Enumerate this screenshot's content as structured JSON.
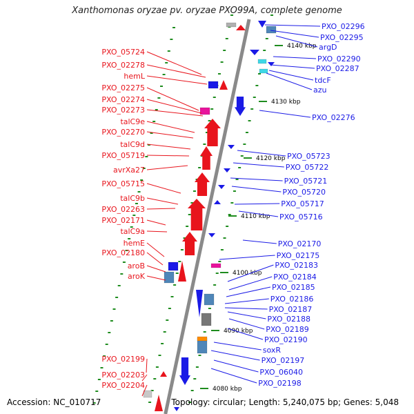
{
  "title": "Xanthomonas oryzae pv. oryzae PXO99A, complete genome",
  "footer": {
    "accession": "Accession: NC_010717",
    "summary": "Topology: circular; Length: 5,240,075 bp; Genes: 5,048"
  },
  "colors": {
    "reverse_strand": "#e8141c",
    "forward_strand": "#1a1ae6",
    "steel_gene": "#4f86b8",
    "cyan_gene": "#3fd7e6",
    "magenta_gene": "#e8149c",
    "ticks": "#1e8c1e",
    "backbone": "#8a8a8a"
  },
  "scale": {
    "unit": "kbp",
    "ticks": [
      "4140 kbp",
      "4130 kbp",
      "4120 kbp",
      "4110 kbp",
      "4100 kbp",
      "4090 kbp",
      "4080 kbp"
    ]
  },
  "left_labels": [
    "PXO_05724",
    "PXO_02278",
    "hemL",
    "PXO_02275",
    "PXO_02274",
    "PXO_02273",
    "talC9e",
    "PXO_02270",
    "talC9d",
    "PXO_05719",
    "avrXa27",
    "PXO_05715",
    "talC9b",
    "PXO_02263",
    "PXO_02171",
    "talC9a",
    "hemE",
    "PXO_02180",
    "aroB",
    "aroK",
    "PXO_02199",
    "PXO_02203",
    "PXO_02204"
  ],
  "right_labels": [
    "PXO_02296",
    "PXO_02295",
    "argD",
    "PXO_02290",
    "PXO_02287",
    "tdcF",
    "azu",
    "PXO_02276",
    "PXO_05723",
    "PXO_05722",
    "PXO_05721",
    "PXO_05720",
    "PXO_05717",
    "PXO_05716",
    "PXO_02170",
    "PXO_02175",
    "PXO_02183",
    "PXO_02184",
    "PXO_02185",
    "PXO_02186",
    "PXO_02187",
    "PXO_02188",
    "PXO_02189",
    "PXO_02190",
    "soxR",
    "PXO_02197",
    "PXO_06040",
    "PXO_02198"
  ]
}
